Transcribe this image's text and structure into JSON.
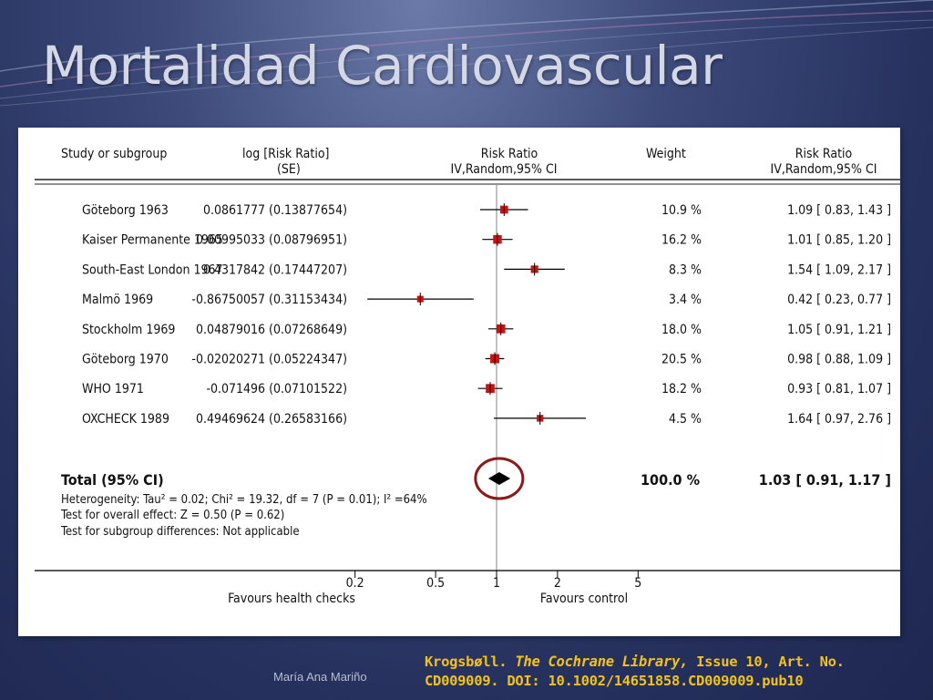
{
  "slide": {
    "title": "Mortalidad Cardiovascular",
    "author": "María Ana Mariño",
    "citation": {
      "authors": "Krogsbøll.",
      "journal": "The Cochrane Library,",
      "rest_line1": "Issue 10, Art. No.",
      "line2": "CD009009. DOI: 10.1002/14651858.CD009009.pub10"
    },
    "colors": {
      "background": "#26315e",
      "title": "#d4d8e6",
      "citation": "#f2c21b",
      "study_marker": "#cc1111",
      "highlight_circle": "#8b1a1a"
    }
  },
  "chart_data": {
    "type": "forest",
    "headers": {
      "study": "Study or subgroup",
      "log_rr_line1": "log [Risk Ratio]",
      "log_rr_line2": "(SE)",
      "rr_plot_line1": "Risk Ratio",
      "rr_plot_line2": "IV,Random,95% CI",
      "weight": "Weight",
      "rr_text_line1": "Risk Ratio",
      "rr_text_line2": "IV,Random,95% CI"
    },
    "studies": [
      {
        "name": "Göteborg 1963",
        "log_rr_se": "0.0861777 (0.13877654)",
        "weight": "10.9 %",
        "weight_value": 10.9,
        "rr_text": "1.09 [ 0.83, 1.43 ]",
        "rr": 1.09,
        "lower": 0.83,
        "upper": 1.43
      },
      {
        "name": "Kaiser Permanente 1965",
        "log_rr_se": "0.00995033 (0.08796951)",
        "weight": "16.2 %",
        "weight_value": 16.2,
        "rr_text": "1.01 [ 0.85, 1.20 ]",
        "rr": 1.01,
        "lower": 0.85,
        "upper": 1.2
      },
      {
        "name": "South-East London 1967",
        "log_rr_se": "0.4317842 (0.17447207)",
        "weight": "8.3 %",
        "weight_value": 8.3,
        "rr_text": "1.54 [ 1.09, 2.17 ]",
        "rr": 1.54,
        "lower": 1.09,
        "upper": 2.17
      },
      {
        "name": "Malmö 1969",
        "log_rr_se": "-0.86750057 (0.31153434)",
        "weight": "3.4 %",
        "weight_value": 3.4,
        "rr_text": "0.42 [ 0.23, 0.77 ]",
        "rr": 0.42,
        "lower": 0.23,
        "upper": 0.77
      },
      {
        "name": "Stockholm 1969",
        "log_rr_se": "0.04879016 (0.07268649)",
        "weight": "18.0 %",
        "weight_value": 18.0,
        "rr_text": "1.05 [ 0.91, 1.21 ]",
        "rr": 1.05,
        "lower": 0.91,
        "upper": 1.21
      },
      {
        "name": "Göteborg 1970",
        "log_rr_se": "-0.02020271 (0.05224347)",
        "weight": "20.5 %",
        "weight_value": 20.5,
        "rr_text": "0.98 [ 0.88, 1.09 ]",
        "rr": 0.98,
        "lower": 0.88,
        "upper": 1.09
      },
      {
        "name": "WHO 1971",
        "log_rr_se": "-0.071496 (0.07101522)",
        "weight": "18.2 %",
        "weight_value": 18.2,
        "rr_text": "0.93 [ 0.81, 1.07 ]",
        "rr": 0.93,
        "lower": 0.81,
        "upper": 1.07
      },
      {
        "name": "OXCHECK 1989",
        "log_rr_se": "0.49469624 (0.26583166)",
        "weight": "4.5 %",
        "weight_value": 4.5,
        "rr_text": "1.64 [ 0.97, 2.76 ]",
        "rr": 1.64,
        "lower": 0.97,
        "upper": 2.76
      }
    ],
    "total": {
      "label": "Total (95% CI)",
      "weight": "100.0 %",
      "rr_text": "1.03 [ 0.91, 1.17 ]",
      "rr": 1.03,
      "lower": 0.91,
      "upper": 1.17
    },
    "heterogeneity": "Heterogeneity: Tau² = 0.02; Chi² = 19.32, df = 7 (P = 0.01); I² =64%",
    "overall_effect": "Test for overall effect: Z = 0.50 (P = 0.62)",
    "subgroup_test": "Test for subgroup differences: Not applicable",
    "x_axis": {
      "scale": "log",
      "ticks": [
        0.2,
        0.5,
        1,
        2,
        5
      ],
      "tick_labels": [
        "0.2",
        "0.5",
        "1",
        "2",
        "5"
      ],
      "range": [
        0.2,
        5
      ]
    },
    "favours_left": "Favours health checks",
    "favours_right": "Favours control",
    "total_highlighted": true
  }
}
